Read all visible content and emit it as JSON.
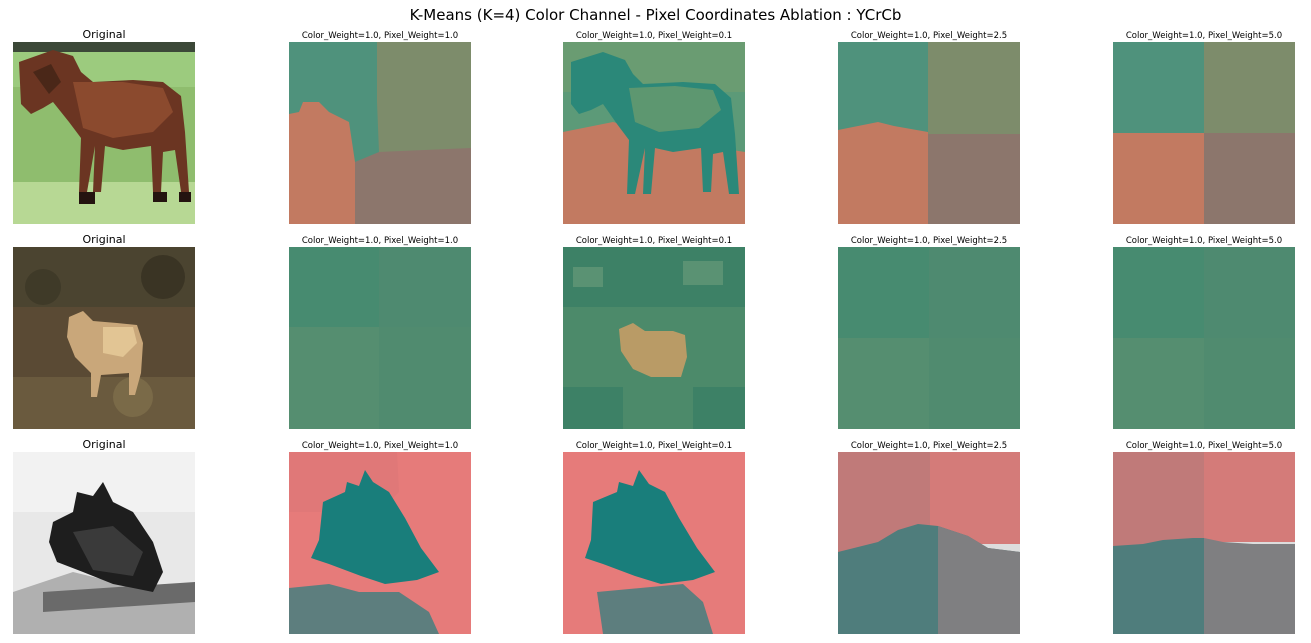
{
  "figure": {
    "title": "K-Means (K=4) Color Channel - Pixel Coordinates Ablation : YCrCb"
  },
  "rows": [
    {
      "original_title": "Original",
      "original_image": "horse",
      "panels": [
        {
          "title": "Color_Weight=1.0, Pixel_Weight=1.0",
          "image": "horse-segmentation-pw-1.0"
        },
        {
          "title": "Color_Weight=1.0, Pixel_Weight=0.1",
          "image": "horse-segmentation-pw-0.1"
        },
        {
          "title": "Color_Weight=1.0, Pixel_Weight=2.5",
          "image": "horse-segmentation-pw-2.5"
        },
        {
          "title": "Color_Weight=1.0, Pixel_Weight=5.0",
          "image": "horse-segmentation-pw-5.0"
        }
      ]
    },
    {
      "original_title": "Original",
      "original_image": "deer",
      "panels": [
        {
          "title": "Color_Weight=1.0, Pixel_Weight=1.0",
          "image": "deer-segmentation-pw-1.0"
        },
        {
          "title": "Color_Weight=1.0, Pixel_Weight=0.1",
          "image": "deer-segmentation-pw-0.1"
        },
        {
          "title": "Color_Weight=1.0, Pixel_Weight=2.5",
          "image": "deer-segmentation-pw-2.5"
        },
        {
          "title": "Color_Weight=1.0, Pixel_Weight=5.0",
          "image": "deer-segmentation-pw-5.0"
        }
      ]
    },
    {
      "original_title": "Original",
      "original_image": "dark-object-on-light-background",
      "panels": [
        {
          "title": "Color_Weight=1.0, Pixel_Weight=1.0",
          "image": "dark-object-segmentation-pw-1.0"
        },
        {
          "title": "Color_Weight=1.0, Pixel_Weight=0.1",
          "image": "dark-object-segmentation-pw-0.1"
        },
        {
          "title": "Color_Weight=1.0, Pixel_Weight=2.5",
          "image": "dark-object-segmentation-pw-2.5"
        },
        {
          "title": "Color_Weight=1.0, Pixel_Weight=5.0",
          "image": "dark-object-segmentation-pw-5.0"
        }
      ]
    }
  ],
  "colors": {
    "horse_teal": "#4f927c",
    "horse_olive": "#7d8c6b",
    "horse_salmon": "#c27a61",
    "horse_mauve": "#8c766c",
    "horse_dark_teal": "#2b8879",
    "deer_green": "#4f8e74",
    "deer_green_dark": "#3d8166",
    "deer_tan": "#b99b66",
    "plane_pink": "#e67b7a",
    "plane_teal": "#197e7b",
    "plane_slate": "#5d7e7e",
    "plane_rose": "#c07a79",
    "plane_grey": "#7f7f81"
  }
}
